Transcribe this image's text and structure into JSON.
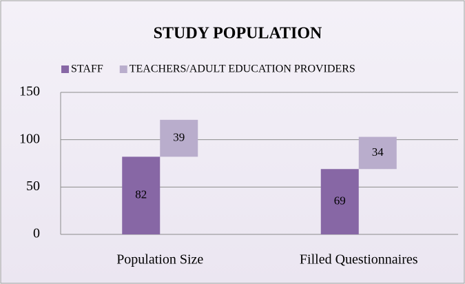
{
  "chart_data": {
    "type": "bar",
    "stacked": true,
    "title": "STUDY POPULATION",
    "categories": [
      "Population Size",
      "Filled Questionnaires"
    ],
    "series": [
      {
        "name": "STAFF",
        "color": "#8767a5",
        "values": [
          82,
          69
        ]
      },
      {
        "name": "TEACHERS/ADULT EDUCATION PROVIDERS",
        "color": "#b9adcc",
        "values": [
          39,
          34
        ]
      }
    ],
    "ylim": [
      0,
      150
    ],
    "yticks": [
      0,
      50,
      100,
      150
    ],
    "grid": true,
    "legend": "top"
  }
}
